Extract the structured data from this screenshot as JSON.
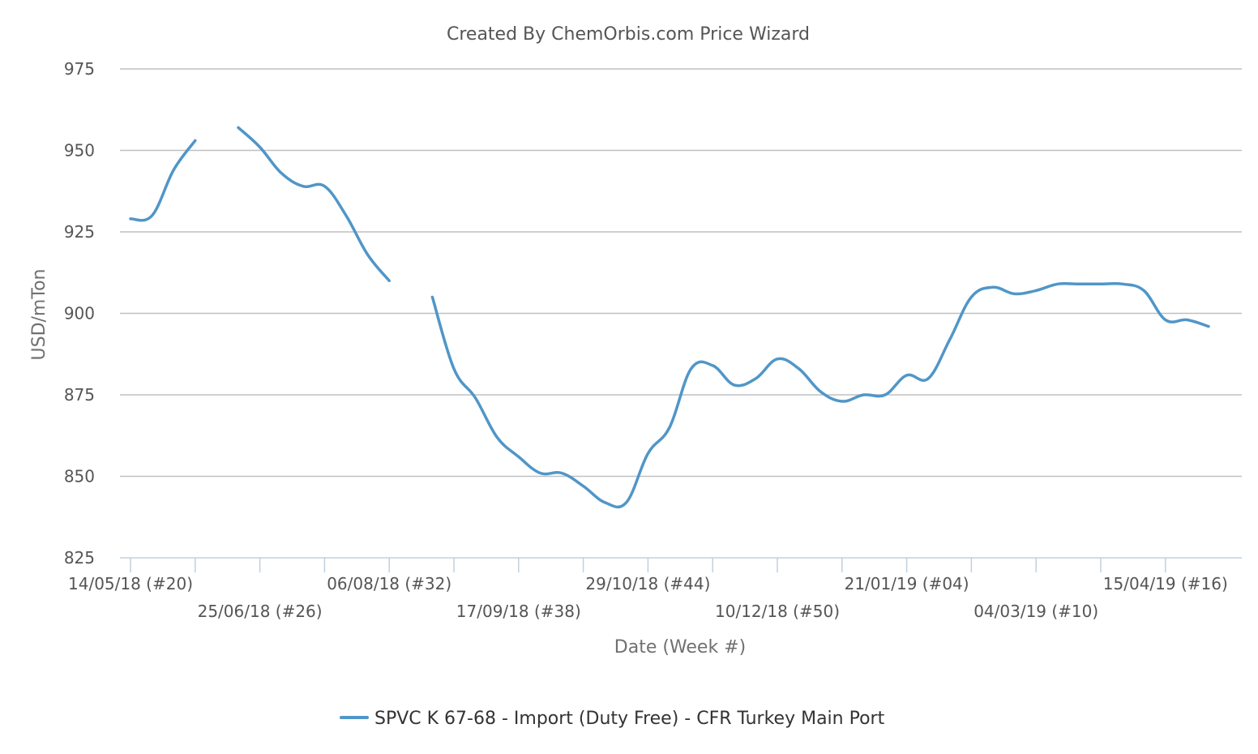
{
  "chart_data": {
    "type": "line",
    "title": "Created By ChemOrbis.com Price Wizard",
    "xlabel": "Date (Week #)",
    "ylabel": "USD/mTon",
    "ylim": [
      825,
      975
    ],
    "yticks": [
      825,
      850,
      875,
      900,
      925,
      950,
      975
    ],
    "grid": true,
    "legend_position": "bottom",
    "x_tick_labels": [
      "14/05/18 (#20)",
      "25/06/18 (#26)",
      "06/08/18 (#32)",
      "17/09/18 (#38)",
      "29/10/18 (#44)",
      "10/12/18 (#50)",
      "21/01/19 (#04)",
      "04/03/19 (#10)",
      "15/04/19 (#16)"
    ],
    "colors": {
      "series": "#5096c8"
    },
    "series": [
      {
        "name": "SPVC K 67-68 - Import (Duty Free) - CFR Turkey Main Port",
        "x": [
          "14/05/18",
          "21/05/18",
          "28/05/18",
          "04/06/18",
          "11/06/18",
          "18/06/18",
          "25/06/18",
          "02/07/18",
          "09/07/18",
          "16/07/18",
          "23/07/18",
          "30/07/18",
          "06/08/18",
          "13/08/18",
          "20/08/18",
          "27/08/18",
          "03/09/18",
          "10/09/18",
          "17/09/18",
          "24/09/18",
          "01/10/18",
          "08/10/18",
          "15/10/18",
          "22/10/18",
          "29/10/18",
          "05/11/18",
          "12/11/18",
          "19/11/18",
          "26/11/18",
          "03/12/18",
          "10/12/18",
          "17/12/18",
          "24/12/18",
          "31/12/18",
          "07/01/19",
          "14/01/19",
          "21/01/19",
          "28/01/19",
          "04/02/19",
          "11/02/19",
          "18/02/19",
          "25/02/19",
          "04/03/19",
          "11/03/19",
          "18/03/19",
          "25/03/19",
          "01/04/19",
          "08/04/19",
          "15/04/19",
          "22/04/19",
          "29/04/19"
        ],
        "values": [
          929,
          930,
          944,
          953,
          null,
          957,
          951,
          943,
          939,
          939,
          930,
          918,
          910,
          null,
          905,
          883,
          874,
          862,
          856,
          851,
          851,
          847,
          842,
          842,
          857,
          865,
          883,
          884,
          878,
          880,
          886,
          883,
          876,
          873,
          875,
          875,
          881,
          880,
          892,
          905,
          908,
          906,
          907,
          909,
          909,
          909,
          909,
          907,
          898,
          898,
          896
        ]
      }
    ]
  }
}
